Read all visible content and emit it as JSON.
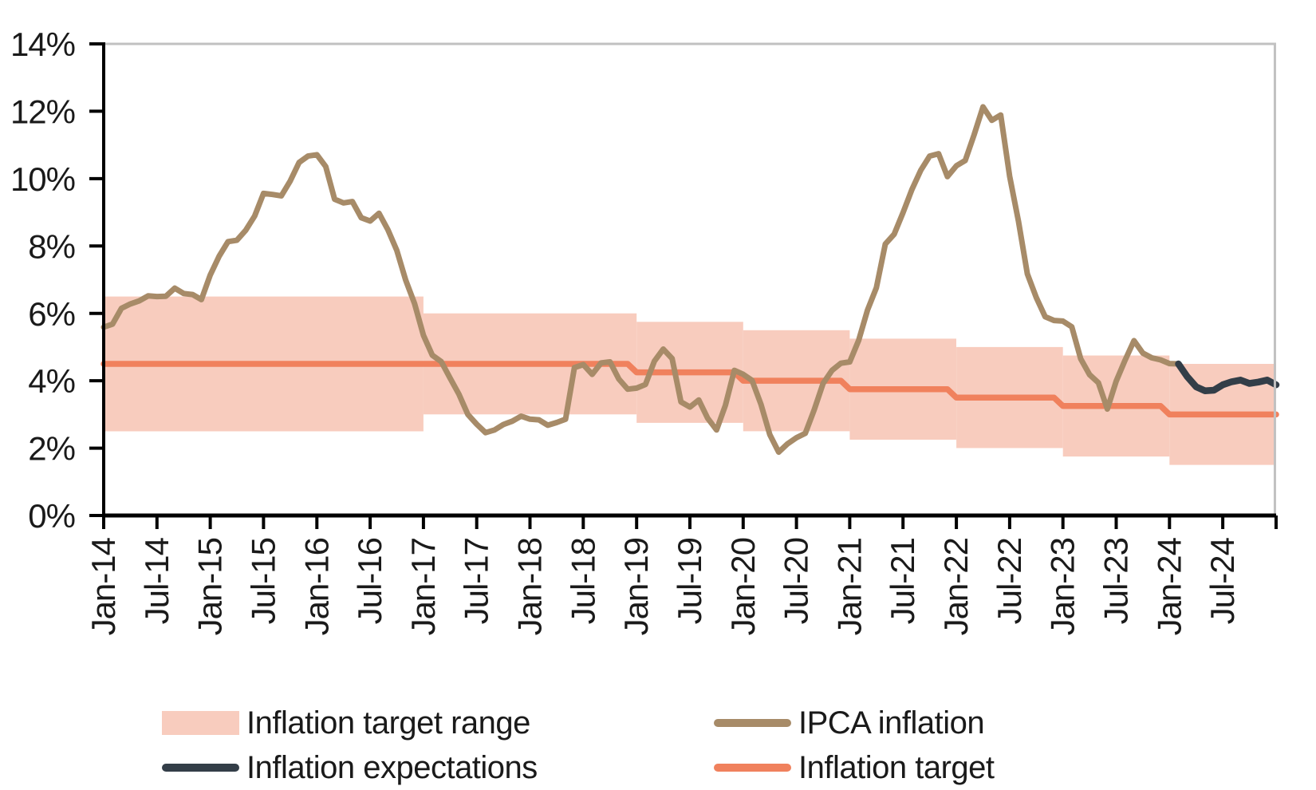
{
  "chart_data": {
    "type": "line",
    "title": "",
    "xlabel": "",
    "ylabel": "",
    "x_axis": {
      "tick_labels": [
        "Jan-14",
        "Jul-14",
        "Jan-15",
        "Jul-15",
        "Jan-16",
        "Jul-16",
        "Jan-17",
        "Jul-17",
        "Jan-18",
        "Jul-18",
        "Jan-19",
        "Jul-19",
        "Jan-20",
        "Jul-20",
        "Jan-21",
        "Jul-21",
        "Jan-22",
        "Jul-22",
        "Jan-23",
        "Jul-23",
        "Jan-24",
        "Jul-24"
      ],
      "tick_month_step": 6,
      "months_total": 132,
      "label_rotation_degrees": -90
    },
    "y_axis": {
      "tick_labels": [
        "0%",
        "2%",
        "4%",
        "6%",
        "8%",
        "10%",
        "12%",
        "14%"
      ],
      "min": 0,
      "max": 14,
      "tick_step": 2
    },
    "grid": "off",
    "frame_color": "#c1c1c1",
    "axis_color": "#000000",
    "band": {
      "name": "Inflation target range",
      "color": "#f8ccbe",
      "steps": [
        {
          "from_year": 2014,
          "to_year": 2017,
          "low": 2.5,
          "high": 6.5
        },
        {
          "from_year": 2017,
          "to_year": 2019,
          "low": 3.0,
          "high": 6.0
        },
        {
          "from_year": 2019,
          "to_year": 2020,
          "low": 2.75,
          "high": 5.75
        },
        {
          "from_year": 2020,
          "to_year": 2021,
          "low": 2.5,
          "high": 5.5
        },
        {
          "from_year": 2021,
          "to_year": 2022,
          "low": 2.25,
          "high": 5.25
        },
        {
          "from_year": 2022,
          "to_year": 2023,
          "low": 2.0,
          "high": 5.0
        },
        {
          "from_year": 2023,
          "to_year": 2024,
          "low": 1.75,
          "high": 4.75
        },
        {
          "from_year": 2024,
          "to_year": 2025,
          "low": 1.5,
          "high": 4.5
        }
      ]
    },
    "target": {
      "name": "Inflation target",
      "color": "#f0815d",
      "steps": [
        {
          "from_year": 2014,
          "to_year": 2019,
          "value": 4.5
        },
        {
          "from_year": 2019,
          "to_year": 2020,
          "value": 4.25
        },
        {
          "from_year": 2020,
          "to_year": 2021,
          "value": 4.0
        },
        {
          "from_year": 2021,
          "to_year": 2022,
          "value": 3.75
        },
        {
          "from_year": 2022,
          "to_year": 2023,
          "value": 3.5
        },
        {
          "from_year": 2023,
          "to_year": 2024,
          "value": 3.25
        },
        {
          "from_year": 2024,
          "to_year": 2025,
          "value": 3.0
        }
      ]
    },
    "series": [
      {
        "name": "IPCA inflation",
        "color": "#a78b68",
        "start_month": "Jan-14",
        "start_month_index": 0,
        "values": [
          5.59,
          5.68,
          6.15,
          6.28,
          6.37,
          6.52,
          6.5,
          6.51,
          6.75,
          6.59,
          6.56,
          6.41,
          7.14,
          7.7,
          8.13,
          8.17,
          8.47,
          8.89,
          9.56,
          9.53,
          9.49,
          9.93,
          10.48,
          10.67,
          10.71,
          10.36,
          9.39,
          9.28,
          9.32,
          8.84,
          8.74,
          8.97,
          8.48,
          7.87,
          6.99,
          6.29,
          5.35,
          4.76,
          4.57,
          4.08,
          3.6,
          3.0,
          2.71,
          2.46,
          2.54,
          2.7,
          2.8,
          2.95,
          2.86,
          2.84,
          2.68,
          2.76,
          2.86,
          4.39,
          4.48,
          4.19,
          4.53,
          4.56,
          4.05,
          3.75,
          3.78,
          3.89,
          4.58,
          4.94,
          4.66,
          3.37,
          3.22,
          3.43,
          2.89,
          2.54,
          3.27,
          4.31,
          4.19,
          4.01,
          3.3,
          2.4,
          1.88,
          2.13,
          2.31,
          2.44,
          3.14,
          3.92,
          4.31,
          4.52,
          4.56,
          5.2,
          6.1,
          6.76,
          8.06,
          8.35,
          8.99,
          9.68,
          10.25,
          10.67,
          10.74,
          10.06,
          10.38,
          10.54,
          11.3,
          12.13,
          11.73,
          11.89,
          10.07,
          8.73,
          7.17,
          6.47,
          5.9,
          5.79,
          5.77,
          5.6,
          4.65,
          4.18,
          3.94,
          3.16,
          3.99,
          4.61,
          5.19,
          4.82,
          4.68,
          4.62,
          4.51,
          4.5
        ]
      },
      {
        "name": "Inflation expectations",
        "color": "#333e48",
        "start_month": "Feb-24",
        "start_month_index": 121,
        "values": [
          4.5,
          4.12,
          3.82,
          3.7,
          3.72,
          3.88,
          3.97,
          4.02,
          3.92,
          3.96,
          4.02,
          3.88
        ]
      }
    ]
  },
  "legend": {
    "items": [
      {
        "label": "Inflation target range",
        "swatch": "area"
      },
      {
        "label": "IPCA inflation",
        "swatch": "line"
      },
      {
        "label": "Inflation expectations",
        "swatch": "line"
      },
      {
        "label": "Inflation target",
        "swatch": "line"
      }
    ]
  }
}
